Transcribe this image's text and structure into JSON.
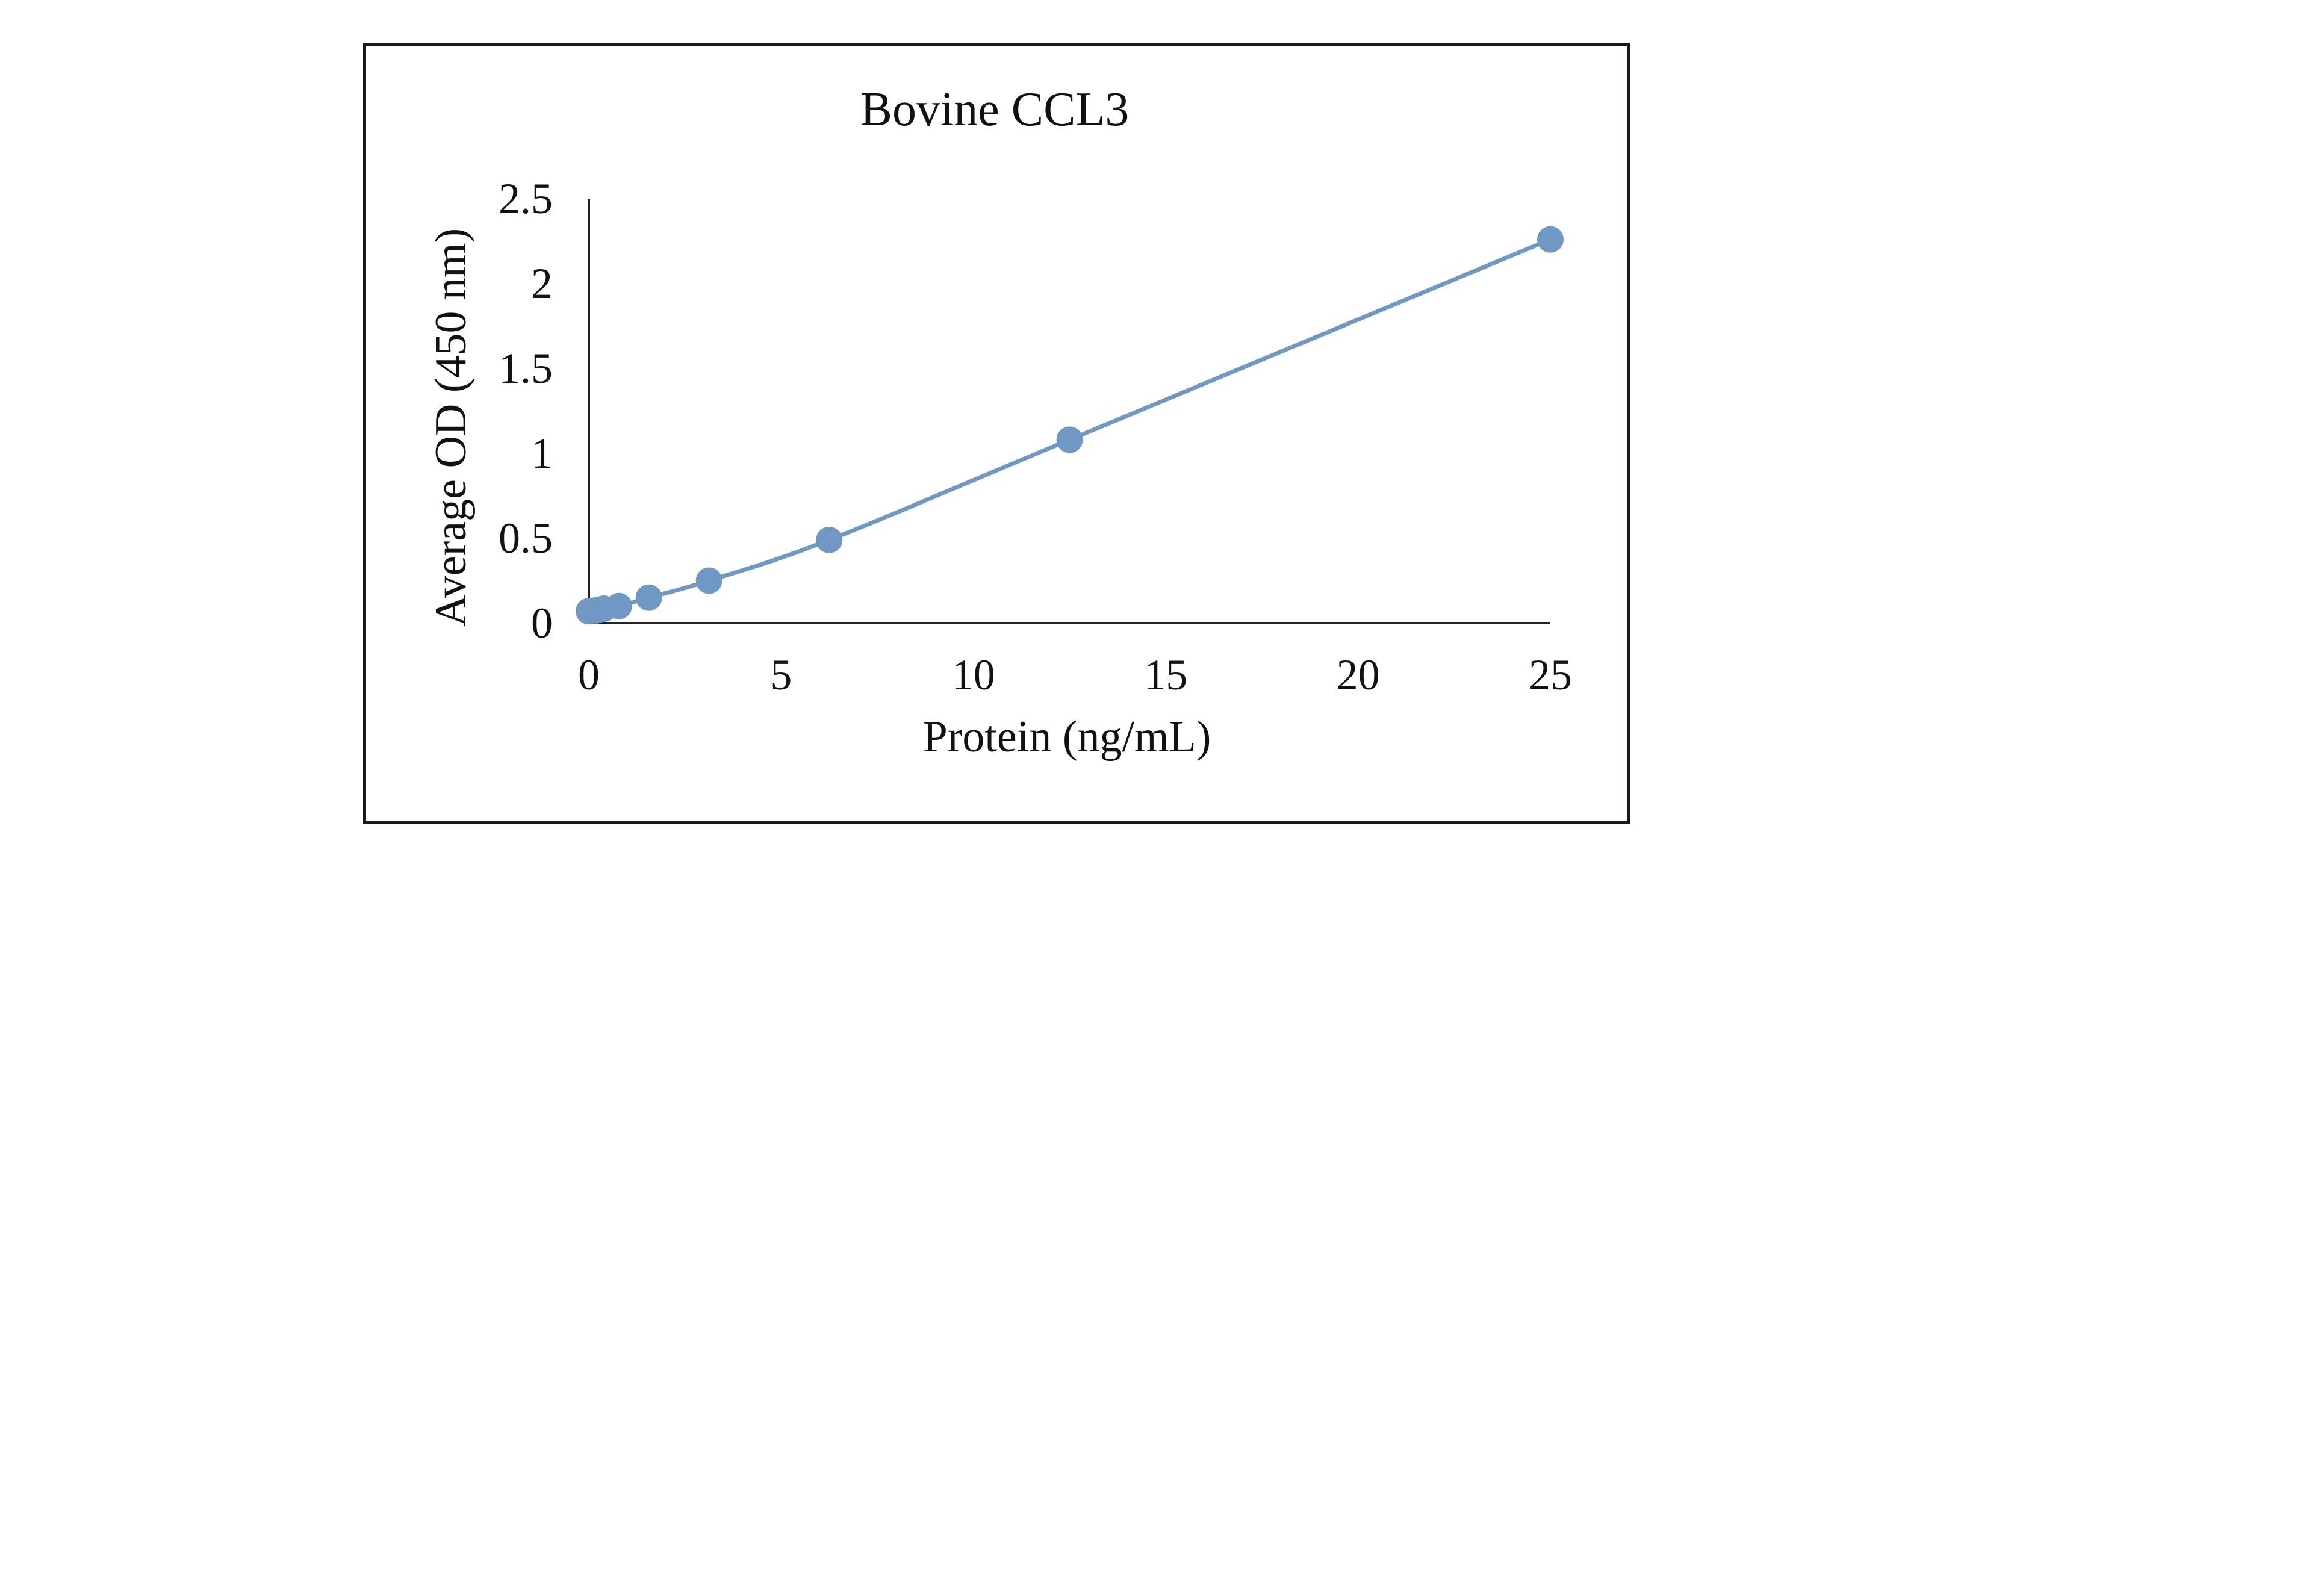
{
  "chart_data": {
    "type": "scatter",
    "title": "Bovine CCL3",
    "xlabel": "Protein (ng/mL)",
    "ylabel": "Average OD (450 nm)",
    "xlim": [
      0,
      25
    ],
    "ylim": [
      0,
      2.5
    ],
    "x_ticks": [
      0,
      5,
      10,
      15,
      20,
      25
    ],
    "y_ticks": [
      0,
      0.5,
      1,
      1.5,
      2,
      2.5
    ],
    "grid": false,
    "legend": "none",
    "series": [
      {
        "color": "#7098c4",
        "line": "smooth",
        "marker": "circle",
        "x": [
          0,
          0.195,
          0.39,
          0.78,
          1.56,
          3.125,
          6.25,
          12.5,
          25
        ],
        "y": [
          0.07,
          0.075,
          0.085,
          0.1,
          0.15,
          0.25,
          0.49,
          1.08,
          2.26
        ]
      }
    ]
  }
}
